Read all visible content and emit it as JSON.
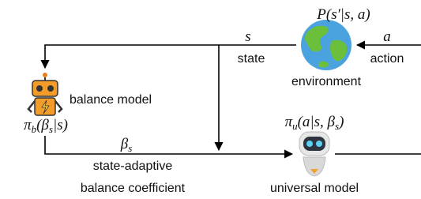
{
  "environment": {
    "label": "environment",
    "transition": "P(s′|s, a)"
  },
  "balance_model": {
    "label": "balance model",
    "policy": [
      {
        "t": "π"
      },
      {
        "sub": "b"
      },
      {
        "t": "(β"
      },
      {
        "sub": "s"
      },
      {
        "t": "|s)"
      }
    ]
  },
  "universal_model": {
    "label": "universal model",
    "policy": [
      {
        "t": "π"
      },
      {
        "sub": "u"
      },
      {
        "t": "(a|s, β"
      },
      {
        "sub": "s"
      },
      {
        "t": ")"
      }
    ]
  },
  "edges": [
    {
      "symbol": "s",
      "label": "state"
    },
    {
      "symbol": "a",
      "label": "action"
    },
    {
      "symbol": [
        {
          "t": "β"
        },
        {
          "sub": "s"
        }
      ],
      "label": [
        "state-adaptive",
        "balance coefficient"
      ]
    }
  ]
}
